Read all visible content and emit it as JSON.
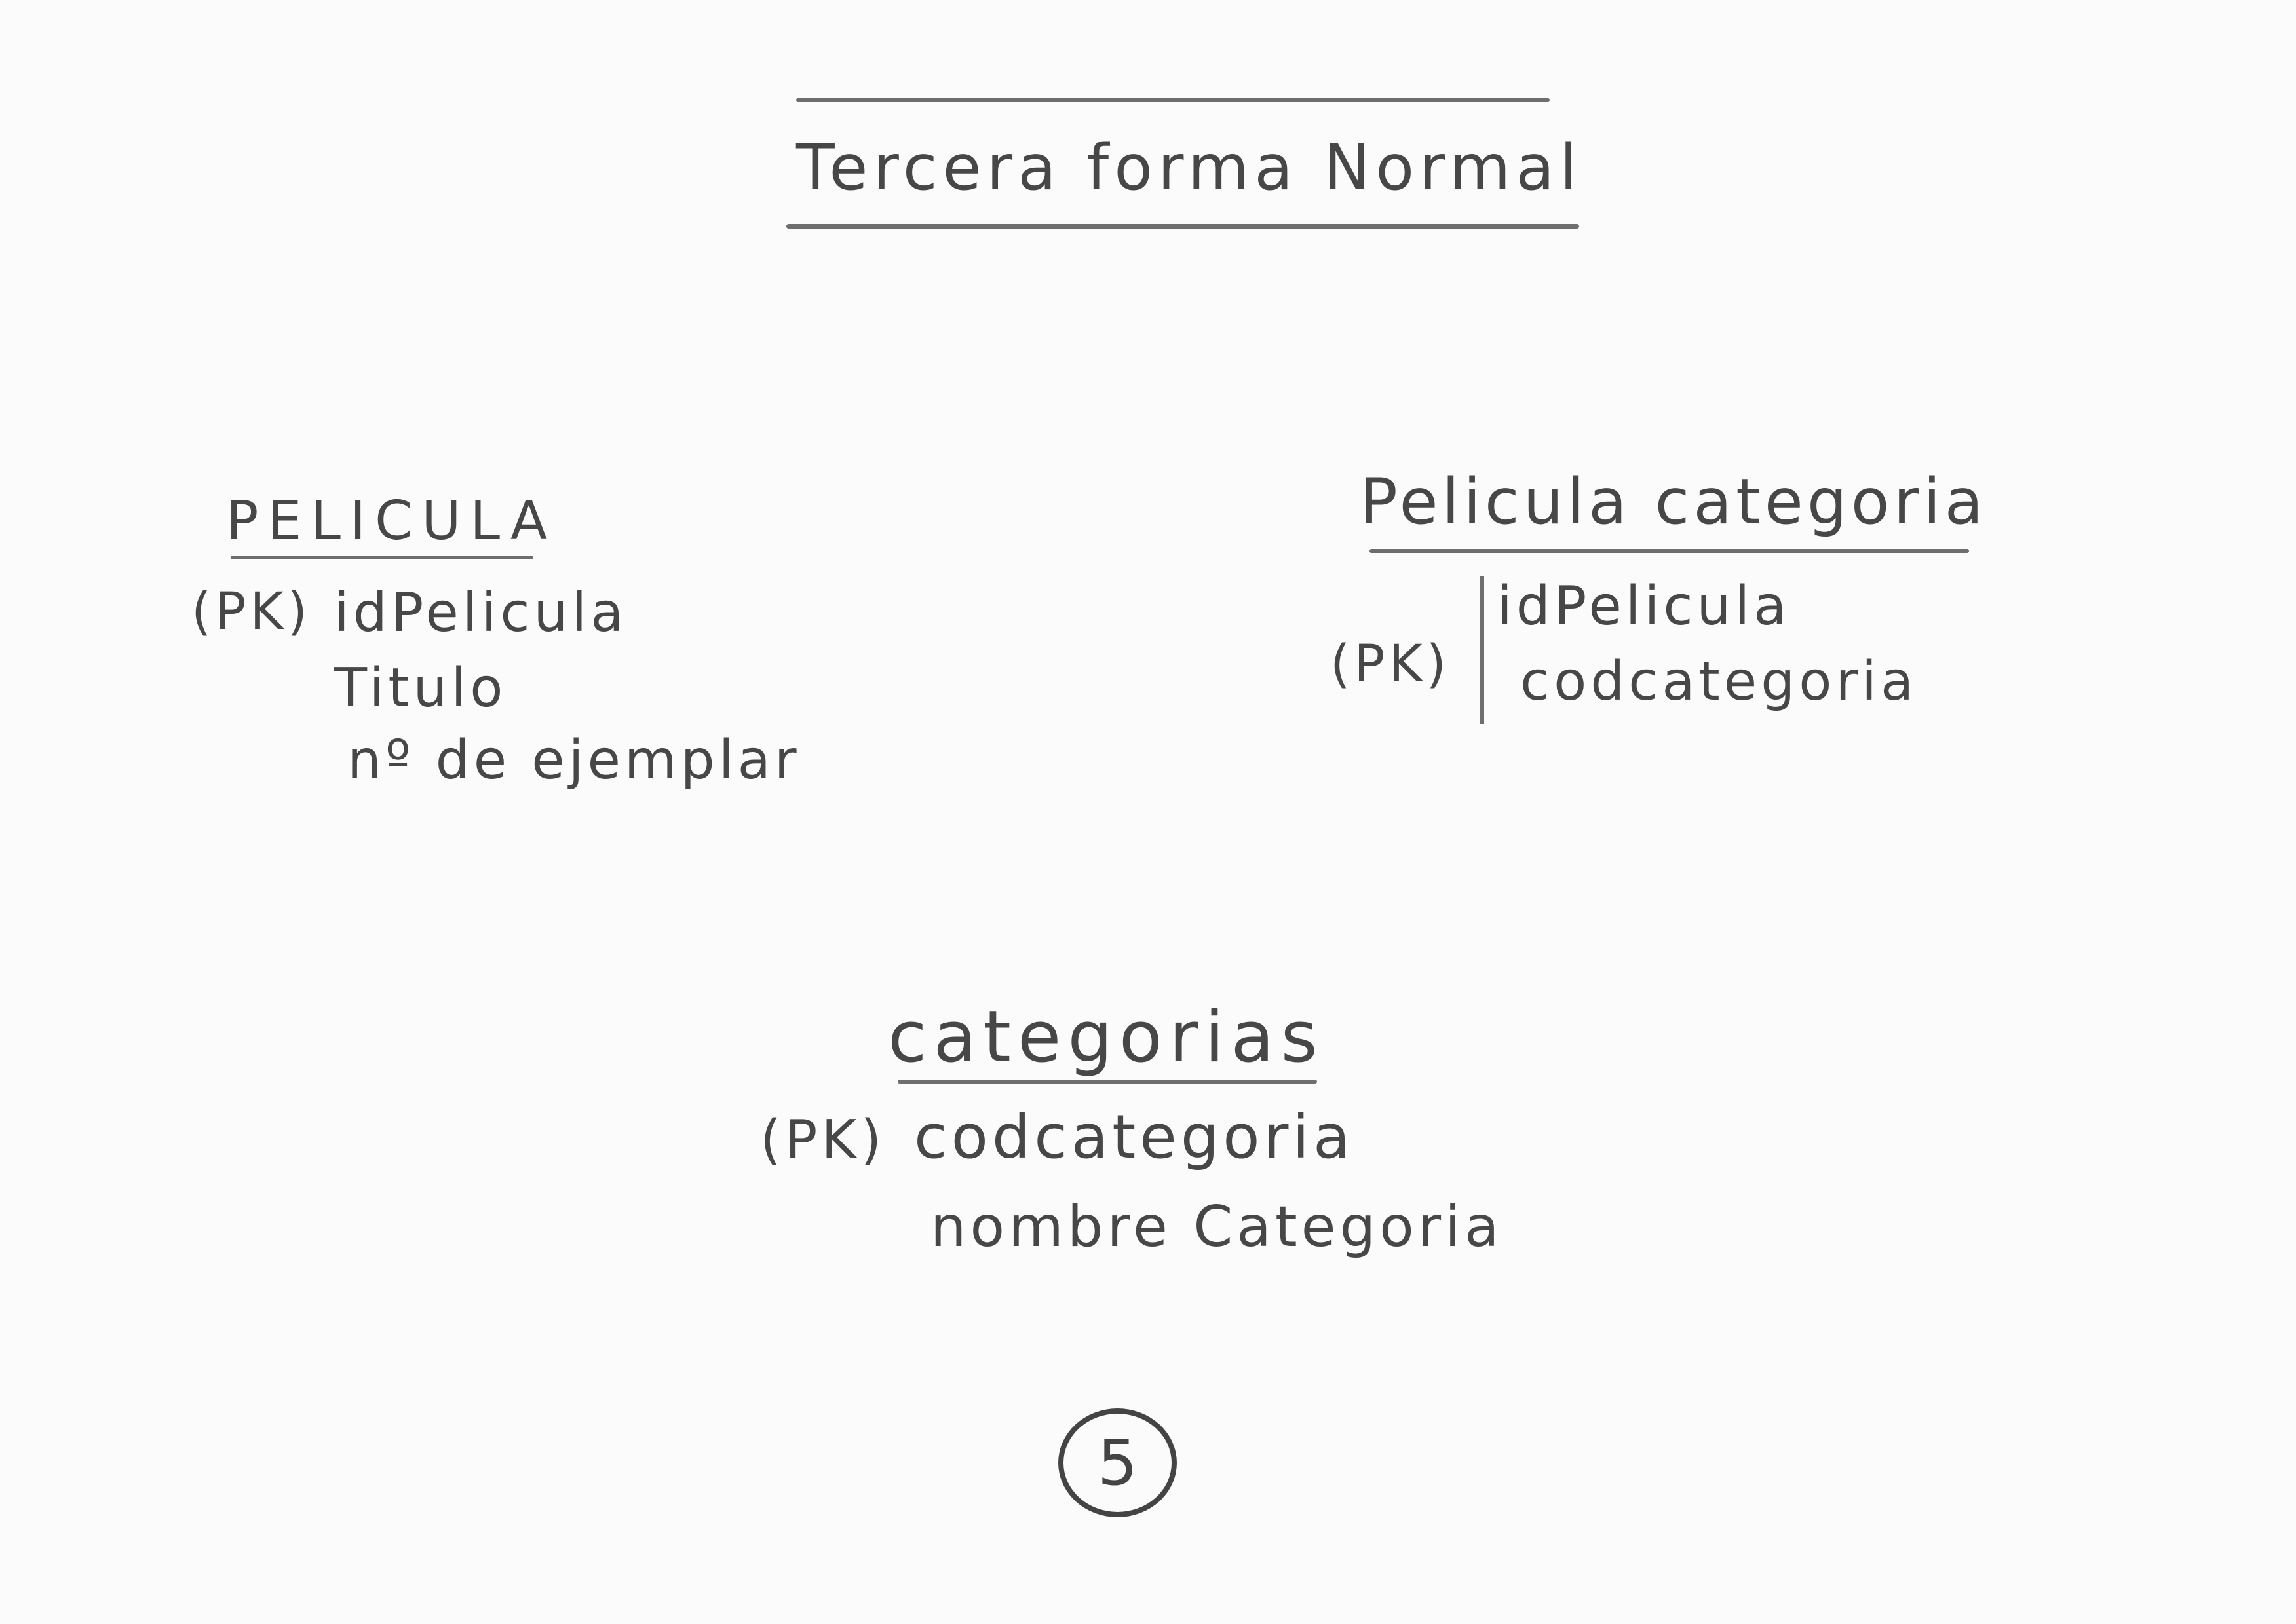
{
  "title": "Tercera forma Normal",
  "entities": [
    {
      "name": "PELICULA",
      "pk_marker": "(PK)",
      "attributes": [
        "idPelicula",
        "Titulo",
        "nº de ejemplar"
      ]
    },
    {
      "name": "Pelicula categoria",
      "pk_marker": "(PK)",
      "attributes": [
        "idPelicula",
        "codcategoria"
      ]
    },
    {
      "name": "categorias",
      "pk_marker": "(PK)",
      "attributes": [
        "codcategoria",
        "nombre Categoria"
      ]
    }
  ],
  "page_number": "5"
}
